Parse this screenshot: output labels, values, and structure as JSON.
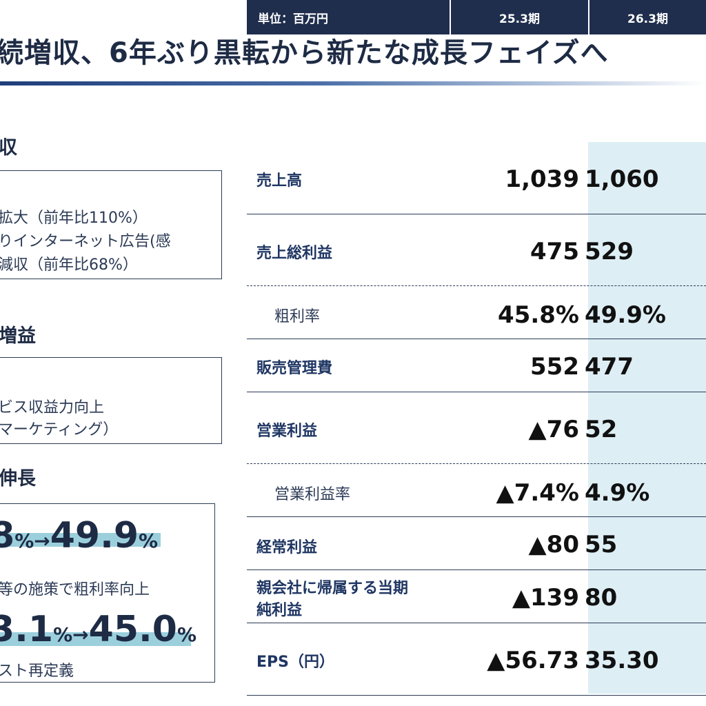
{
  "title": "続増収、6年ぶり黒転から新たな成長フェイズへ",
  "left": {
    "sec1": "収",
    "box1": [
      "拡大（前年比110%）",
      "りインターネット広告(感",
      "減収（前年比68%）"
    ],
    "sec2": "増益",
    "box2": [
      "ビス収益力向上",
      "マーケティング）"
    ],
    "sec3": "伸長",
    "kpi1": {
      "from": "8",
      "arrow": "%→",
      "to": "49.9",
      "unit": "%"
    },
    "note1": "等の施策で粗利率向上",
    "kpi2": {
      "from": "3.1",
      "arrow": "%→",
      "to": "45.0",
      "unit": "%"
    },
    "note2": "スト再定義"
  },
  "table": {
    "unit": "単位：百万円",
    "col1": "25.3期",
    "col2": "26.3期",
    "rows": [
      {
        "label": "売上高",
        "v1": "1,039",
        "v2": "1,060"
      },
      {
        "label": "売上総利益",
        "v1": "475",
        "v2": "529"
      },
      {
        "label": "粗利率",
        "v1": "45.8%",
        "v2": "49.9%"
      },
      {
        "label": "販売管理費",
        "v1": "552",
        "v2": "477"
      },
      {
        "label": "営業利益",
        "v1": "▲76",
        "v2": "52"
      },
      {
        "label": "営業利益率",
        "v1": "▲7.4%",
        "v2": "4.9%"
      },
      {
        "label": "経常利益",
        "v1": "▲80",
        "v2": "55"
      },
      {
        "label1": "親会社に帰属する当期",
        "label2": "純利益",
        "v1": "▲139",
        "v2": "80"
      },
      {
        "label": "EPS（円）",
        "v1": "▲56.73",
        "v2": "35.30"
      }
    ]
  }
}
